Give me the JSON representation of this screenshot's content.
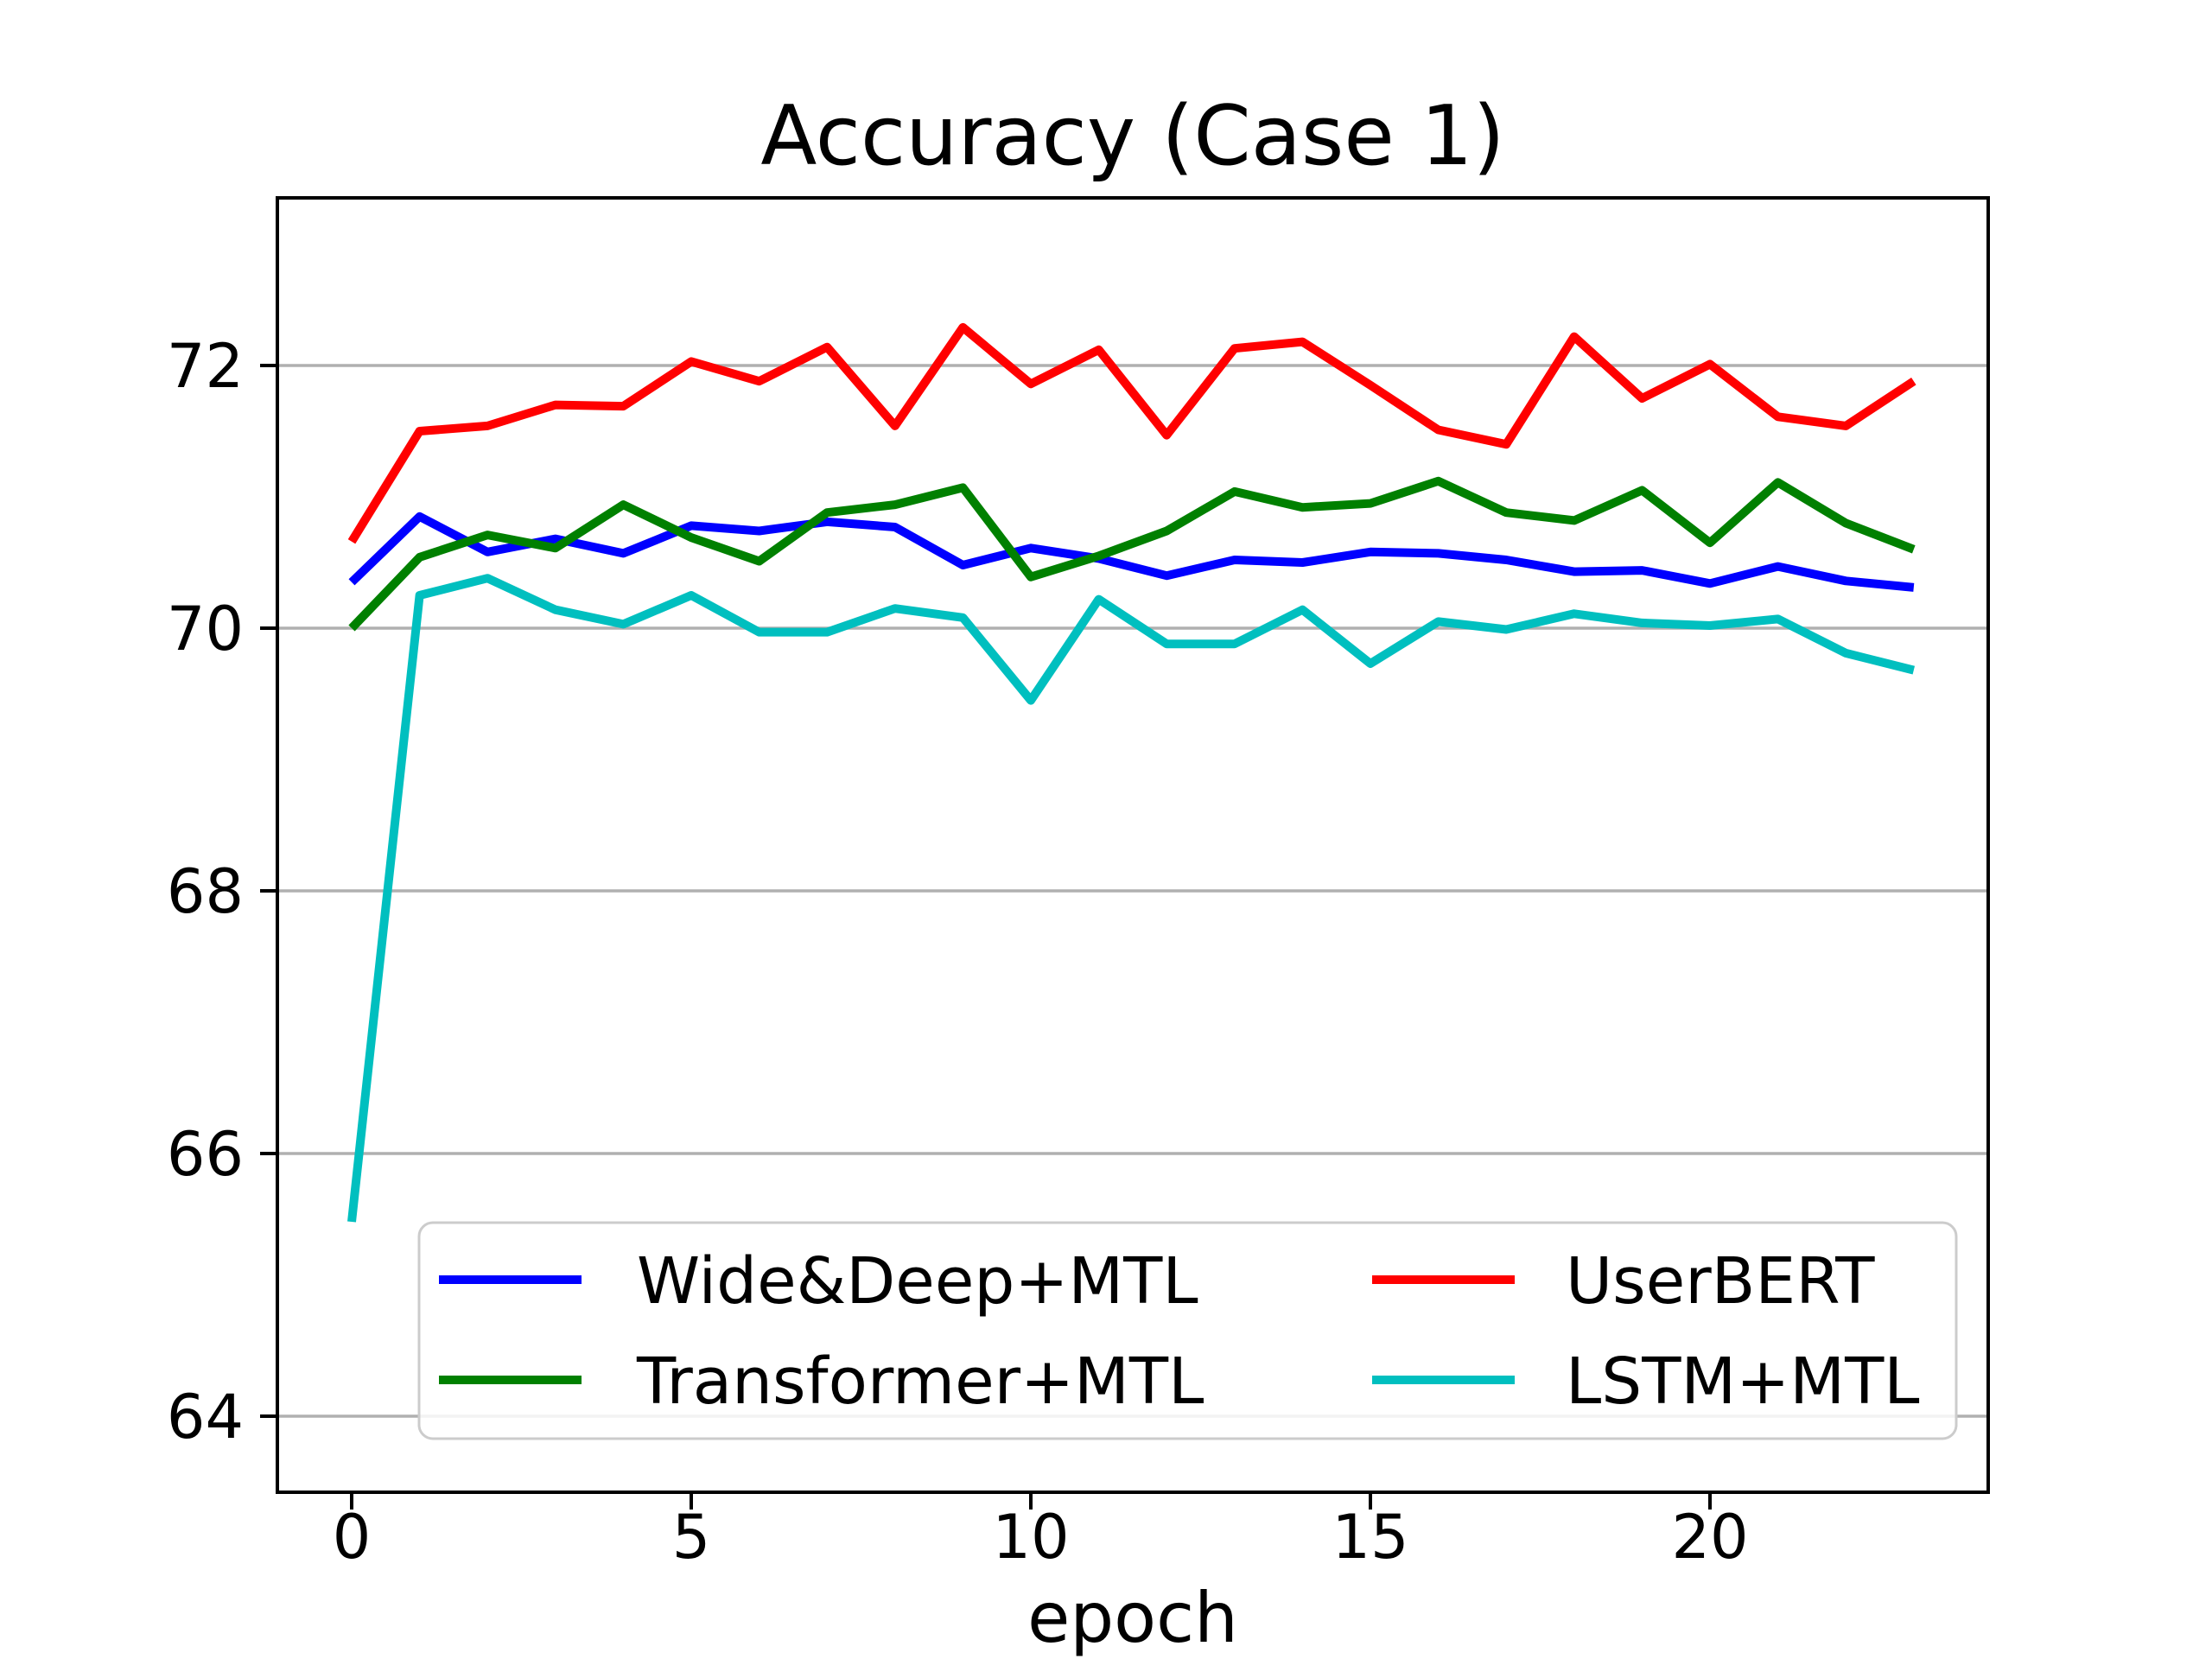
{
  "chart_data": {
    "type": "line",
    "title": "Accuracy (Case 1)",
    "xlabel": "epoch",
    "ylabel": "",
    "x": [
      0,
      1,
      2,
      3,
      4,
      5,
      6,
      7,
      8,
      9,
      10,
      11,
      12,
      13,
      14,
      15,
      16,
      17,
      18,
      19,
      20,
      21,
      22,
      23
    ],
    "series": [
      {
        "name": "Wide&Deep+MTL",
        "color": "#0000ff",
        "values": [
          70.35,
          70.85,
          70.58,
          70.68,
          70.57,
          70.78,
          70.74,
          70.81,
          70.77,
          70.48,
          70.61,
          70.53,
          70.4,
          70.52,
          70.5,
          70.58,
          70.57,
          70.52,
          70.43,
          70.44,
          70.34,
          70.47,
          70.36,
          70.31
        ]
      },
      {
        "name": "Transformer+MTL",
        "color": "#008000",
        "values": [
          70.0,
          70.54,
          70.71,
          70.61,
          70.94,
          70.69,
          70.51,
          70.88,
          70.94,
          71.07,
          70.39,
          70.55,
          70.74,
          71.04,
          70.92,
          70.95,
          71.12,
          70.88,
          70.82,
          71.05,
          70.65,
          71.11,
          70.8,
          70.6
        ]
      },
      {
        "name": "UserBERT",
        "color": "#ff0000",
        "values": [
          70.66,
          71.5,
          71.54,
          71.7,
          71.69,
          72.03,
          71.88,
          72.14,
          71.54,
          72.29,
          71.86,
          72.12,
          71.47,
          72.13,
          72.18,
          71.85,
          71.51,
          71.4,
          72.22,
          71.75,
          72.01,
          71.61,
          71.54,
          71.88
        ]
      },
      {
        "name": "LSTM+MTL",
        "color": "#00bfbf",
        "values": [
          65.48,
          70.25,
          70.38,
          70.14,
          70.03,
          70.25,
          69.97,
          69.97,
          70.15,
          70.08,
          69.45,
          70.22,
          69.88,
          69.88,
          70.14,
          69.73,
          70.05,
          69.99,
          70.11,
          70.04,
          70.02,
          70.07,
          69.81,
          69.68
        ]
      }
    ],
    "xticks": [
      0,
      5,
      10,
      15,
      20
    ],
    "yticks": [
      72,
      70,
      68,
      66,
      64
    ],
    "xlim": [
      -1.15,
      24.15
    ],
    "ylim": [
      63.42,
      73.28
    ],
    "grid": "horizontal",
    "grid_color": "#b0b0b0",
    "axis_color": "#000000",
    "legend": {
      "position": "lower-left",
      "columns": 2,
      "edge_color": "#cccccc",
      "entries": [
        "Wide&Deep+MTL",
        "Transformer+MTL",
        "UserBERT",
        "LSTM+MTL"
      ]
    }
  }
}
